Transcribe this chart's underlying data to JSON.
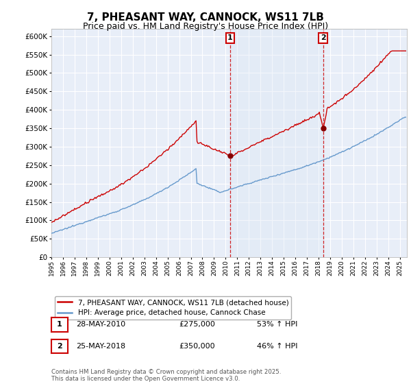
{
  "title": "7, PHEASANT WAY, CANNOCK, WS11 7LB",
  "subtitle": "Price paid vs. HM Land Registry's House Price Index (HPI)",
  "ylim": [
    0,
    620000
  ],
  "ytick_values": [
    0,
    50000,
    100000,
    150000,
    200000,
    250000,
    300000,
    350000,
    400000,
    450000,
    500000,
    550000,
    600000
  ],
  "xlim_start": 1995.0,
  "xlim_end": 2025.6,
  "background_color": "#ffffff",
  "plot_bg_color": "#e8eef8",
  "grid_color": "#ffffff",
  "red_line_color": "#cc0000",
  "blue_line_color": "#6699cc",
  "shade_color": "#dce8f5",
  "transaction1_x": 2010.38,
  "transaction1_y": 275000,
  "transaction1_label": "1",
  "transaction2_x": 2018.38,
  "transaction2_y": 350000,
  "transaction2_label": "2",
  "legend_line1": "7, PHEASANT WAY, CANNOCK, WS11 7LB (detached house)",
  "legend_line2": "HPI: Average price, detached house, Cannock Chase",
  "table_row1": [
    "1",
    "28-MAY-2010",
    "£275,000",
    "53% ↑ HPI"
  ],
  "table_row2": [
    "2",
    "25-MAY-2018",
    "£350,000",
    "46% ↑ HPI"
  ],
  "footer": "Contains HM Land Registry data © Crown copyright and database right 2025.\nThis data is licensed under the Open Government Licence v3.0.",
  "title_fontsize": 11,
  "subtitle_fontsize": 9
}
